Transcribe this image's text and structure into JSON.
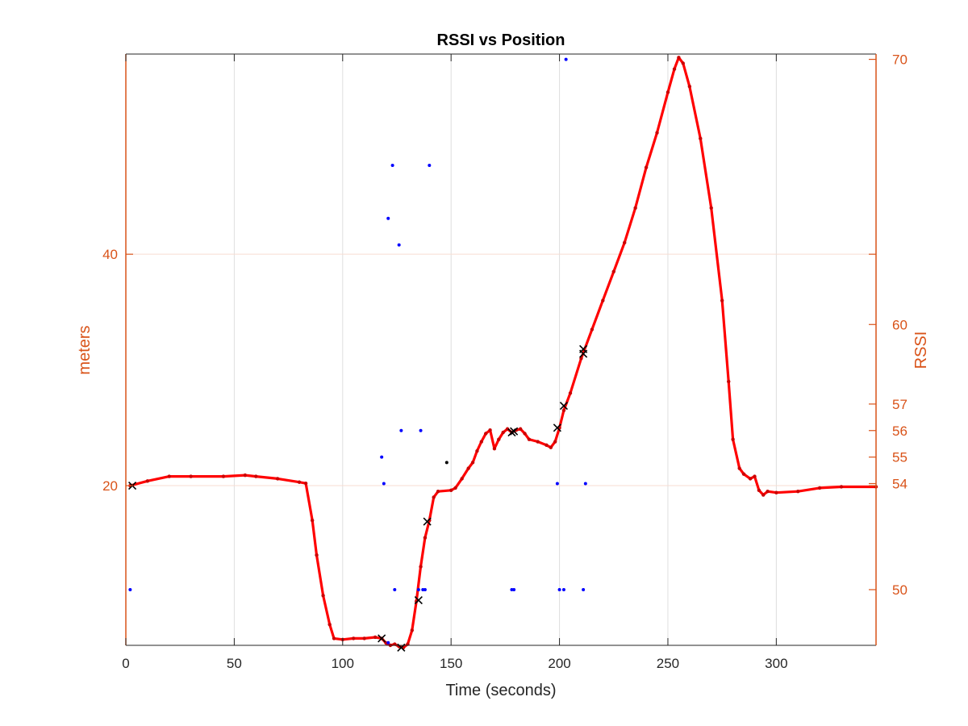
{
  "colors": {
    "axis_left": "#d95319",
    "axis_right": "#d95319",
    "axis_bottom": "#262626",
    "grid_x": "#dedede",
    "grid_y": "#f7ddd2",
    "position_line": "#ff0000",
    "rssi_points": "#0000ff",
    "markers": "#000000"
  },
  "chart_data": {
    "type": "line",
    "title": "RSSI vs Position",
    "xlabel": "Time (seconds)",
    "ylabel_left": "meters",
    "ylabel_right": "RSSI",
    "xlim": [
      0,
      346
    ],
    "ylim_left": [
      6.2,
      57.3
    ],
    "ylim_right": [
      47.9,
      70.2
    ],
    "grid": true,
    "x_ticks": [
      0,
      50,
      100,
      150,
      200,
      250,
      300
    ],
    "x_tick_labels": [
      "0",
      "50",
      "100",
      "150",
      "200",
      "250",
      "300"
    ],
    "y_left_ticks": [
      20,
      40
    ],
    "y_left_tick_labels": [
      "20",
      "40"
    ],
    "y_right_ticks": [
      50,
      54,
      55,
      56,
      57,
      60,
      70
    ],
    "y_right_tick_labels": [
      "50",
      "54",
      "55",
      "56",
      "57",
      "60",
      "70"
    ],
    "series": [
      {
        "kind": "position-line",
        "axis": "left",
        "x": [
          2,
          10,
          20,
          30,
          45,
          55,
          60,
          70,
          80,
          83,
          86,
          88,
          91,
          94,
          96,
          100,
          105,
          110,
          115,
          118,
          120,
          122,
          124,
          126,
          128,
          130,
          132,
          134,
          136,
          138,
          140,
          142,
          144,
          150,
          152,
          155,
          158,
          160,
          162,
          164,
          166,
          168,
          170,
          172,
          174,
          176,
          178,
          180,
          182,
          184,
          186,
          190,
          194,
          196,
          198,
          200,
          202,
          205,
          210,
          215,
          220,
          225,
          230,
          235,
          240,
          245,
          250,
          253,
          255,
          257,
          260,
          265,
          270,
          275,
          278,
          280,
          283,
          285,
          288,
          290,
          292,
          294,
          296,
          300,
          310,
          320,
          330,
          346
        ],
        "y": [
          20.0,
          20.4,
          20.8,
          20.8,
          20.8,
          20.9,
          20.8,
          20.6,
          20.3,
          20.2,
          17.0,
          14.0,
          10.5,
          8.0,
          6.8,
          6.7,
          6.8,
          6.8,
          6.9,
          6.8,
          6.4,
          6.2,
          6.3,
          6.1,
          6.0,
          6.3,
          7.5,
          10.0,
          13.0,
          15.5,
          17.0,
          19.0,
          19.5,
          19.6,
          19.8,
          20.6,
          21.5,
          22.0,
          23.0,
          23.8,
          24.5,
          24.8,
          23.2,
          24.0,
          24.6,
          24.9,
          24.6,
          24.8,
          24.9,
          24.5,
          24.0,
          23.8,
          23.5,
          23.3,
          23.8,
          25.0,
          26.5,
          28.0,
          31.0,
          33.5,
          36.0,
          38.5,
          41.0,
          44.0,
          47.5,
          50.5,
          54.0,
          56.0,
          57.0,
          56.5,
          54.5,
          50.0,
          44.0,
          36.0,
          29.0,
          24.0,
          21.5,
          21.0,
          20.6,
          20.8,
          19.6,
          19.2,
          19.5,
          19.4,
          19.5,
          19.8,
          19.9,
          19.9
        ]
      },
      {
        "kind": "rssi-points",
        "axis": "right",
        "x": [
          2,
          118,
          119,
          121,
          121,
          123,
          124,
          126,
          127,
          135,
          136,
          137,
          138,
          140,
          178,
          179,
          199,
          200,
          202,
          203,
          211,
          212
        ],
        "y": [
          50,
          55,
          54,
          48,
          64,
          66,
          50,
          63,
          56,
          50,
          56,
          50,
          50,
          66,
          50,
          50,
          54,
          50,
          50,
          70,
          50,
          54
        ]
      },
      {
        "kind": "markers",
        "axis": "left",
        "x": [
          3,
          118,
          127,
          135,
          139,
          178,
          179,
          199,
          202,
          211,
          211
        ],
        "y": [
          20.0,
          6.8,
          6.0,
          10.1,
          16.9,
          24.6,
          24.7,
          25.0,
          26.9,
          31.4,
          31.8
        ]
      },
      {
        "kind": "single-point",
        "axis": "left",
        "x": [
          148
        ],
        "y": [
          22.0
        ]
      }
    ]
  }
}
